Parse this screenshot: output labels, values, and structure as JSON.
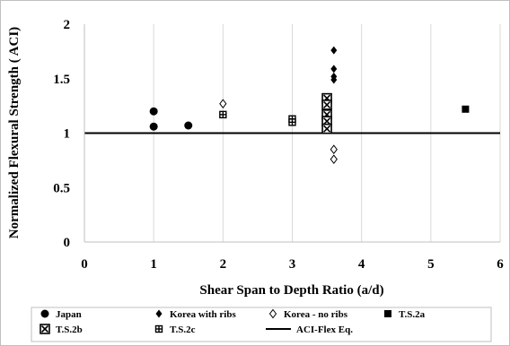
{
  "chart_data": {
    "type": "scatter",
    "title": "",
    "xlabel": "Shear Span to Depth Ratio (a/d)",
    "ylabel": "Normalized Flexural Strength ( ACI)",
    "xlim": [
      0,
      6
    ],
    "ylim": [
      0,
      2
    ],
    "x_ticks": [
      "0",
      "1",
      "2",
      "3",
      "4",
      "5",
      "6"
    ],
    "y_ticks": [
      "0",
      "0.5",
      "1",
      "1.5",
      "2"
    ],
    "grid": "vertical",
    "legend_position": "bottom",
    "series": [
      {
        "name": "Japan",
        "marker": "circle",
        "color": "#000000",
        "points": [
          [
            1.0,
            1.2
          ],
          [
            1.0,
            1.06
          ],
          [
            1.5,
            1.07
          ]
        ]
      },
      {
        "name": "Korea with ribs",
        "marker": "diamond",
        "color": "#000000",
        "points": [
          [
            3.6,
            1.76
          ],
          [
            3.6,
            1.59
          ],
          [
            3.6,
            1.52
          ],
          [
            3.6,
            1.49
          ]
        ]
      },
      {
        "name": "Korea - no ribs",
        "marker": "open-diamond",
        "color": "#000000",
        "points": [
          [
            2.0,
            1.27
          ],
          [
            3.6,
            0.85
          ],
          [
            3.6,
            0.76
          ]
        ]
      },
      {
        "name": "T.S.2a",
        "marker": "square",
        "color": "#000000",
        "points": [
          [
            5.5,
            1.22
          ]
        ]
      },
      {
        "name": "T.S.2b",
        "marker": "crossed-square",
        "color": "#000000",
        "points": [
          [
            3.5,
            1.32
          ],
          [
            3.5,
            1.26
          ],
          [
            3.5,
            1.17
          ],
          [
            3.5,
            1.11
          ],
          [
            3.5,
            1.04
          ]
        ]
      },
      {
        "name": "T.S.2c",
        "marker": "grid-square",
        "color": "#000000",
        "points": [
          [
            2.0,
            1.17
          ],
          [
            3.0,
            1.13
          ],
          [
            3.0,
            1.1
          ]
        ]
      },
      {
        "name": "ACI-Flex Eq.",
        "marker": "line",
        "color": "#000000",
        "points": [
          [
            0,
            1.0
          ],
          [
            6,
            1.0
          ]
        ]
      }
    ]
  }
}
